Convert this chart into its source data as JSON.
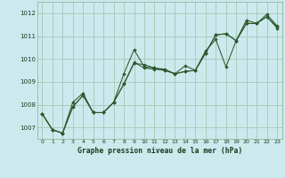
{
  "title": "Graphe pression niveau de la mer (hPa)",
  "bg_color": "#cce9ee",
  "grid_color": "#aaccbb",
  "line_color": "#2d5a2d",
  "marker_color": "#2d5a2d",
  "xlim": [
    -0.5,
    23.5
  ],
  "ylim": [
    1006.5,
    1012.5
  ],
  "xticks": [
    0,
    1,
    2,
    3,
    4,
    5,
    6,
    7,
    8,
    9,
    10,
    11,
    12,
    13,
    14,
    15,
    16,
    17,
    18,
    19,
    20,
    21,
    22,
    23
  ],
  "yticks": [
    1007,
    1008,
    1009,
    1010,
    1011,
    1012
  ],
  "series": [
    [
      1007.6,
      1006.9,
      1006.75,
      1007.9,
      1008.4,
      1007.65,
      1007.65,
      1008.1,
      1008.9,
      1009.8,
      1009.75,
      1009.6,
      1009.5,
      1009.35,
      1009.45,
      1009.5,
      1010.25,
      1011.05,
      1011.1,
      1010.8,
      1011.55,
      1011.55,
      1011.85,
      1011.4
    ],
    [
      1007.6,
      1006.9,
      1006.75,
      1008.1,
      1008.5,
      1007.65,
      1007.65,
      1008.1,
      1009.35,
      1010.4,
      1009.65,
      1009.6,
      1009.55,
      1009.35,
      1009.7,
      1009.5,
      1010.35,
      1010.85,
      1009.65,
      1010.8,
      1011.7,
      1011.55,
      1011.95,
      1011.45
    ],
    [
      1007.6,
      1006.9,
      1006.75,
      1007.9,
      1008.4,
      1007.65,
      1007.65,
      1008.1,
      1008.9,
      1009.85,
      1009.6,
      1009.55,
      1009.5,
      1009.35,
      1009.45,
      1009.5,
      1010.25,
      1011.05,
      1011.1,
      1010.8,
      1011.55,
      1011.55,
      1011.85,
      1011.35
    ]
  ]
}
